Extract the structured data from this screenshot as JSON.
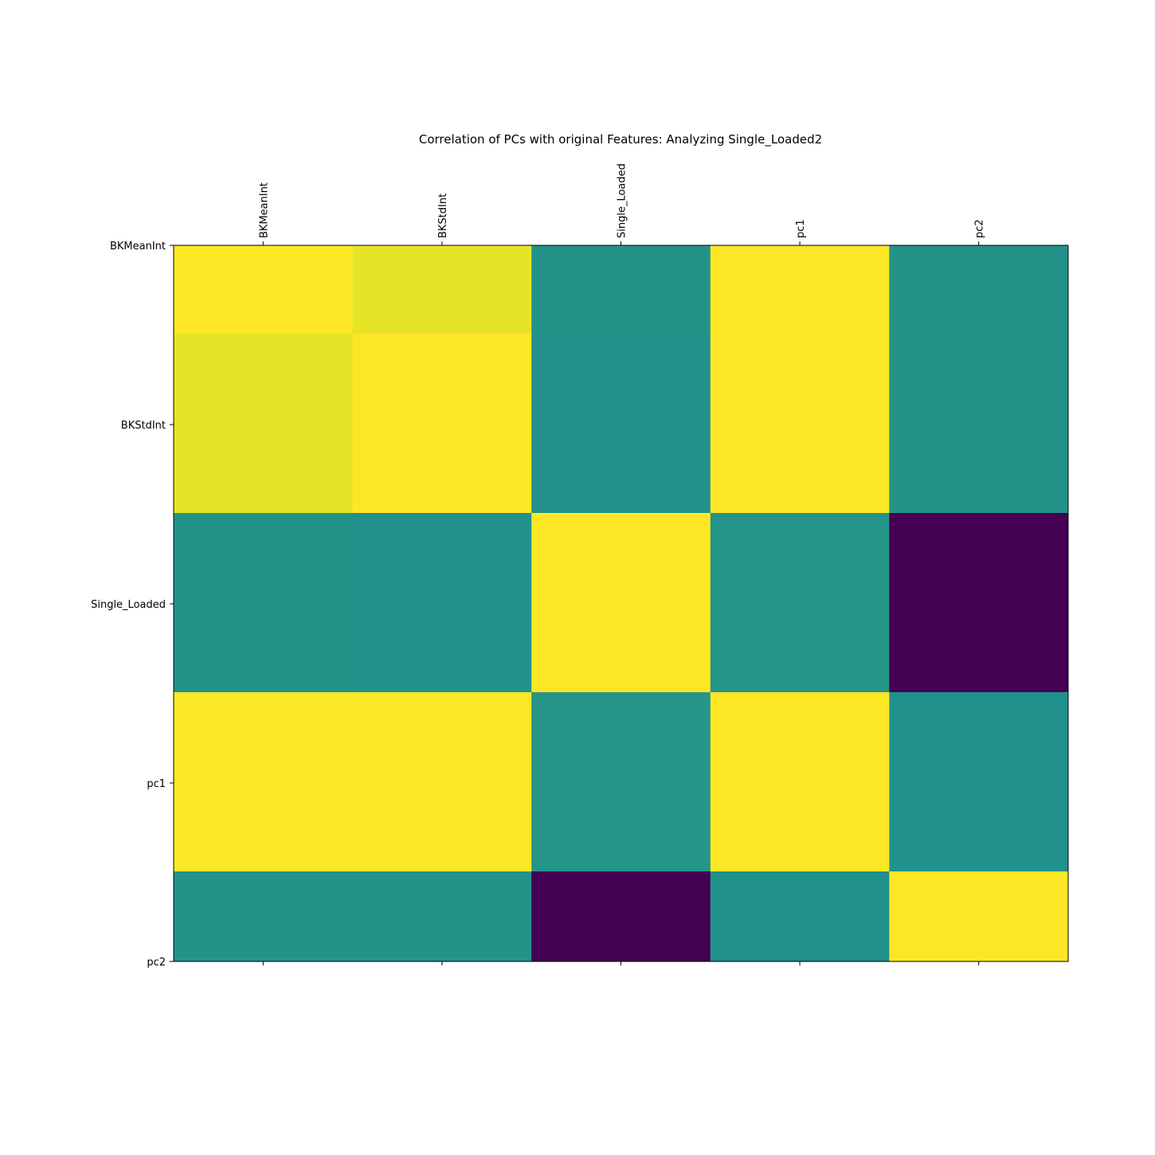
{
  "chart_data": {
    "type": "heatmap",
    "title": "Correlation of PCs with original Features: Analyzing Single_Loaded2",
    "x_labels": [
      "BKMeanInt",
      "BKStdInt",
      "Single_Loaded",
      "pc1",
      "pc2"
    ],
    "y_labels": [
      "BKMeanInt",
      "BKStdInt",
      "Single_Loaded",
      "pc1",
      "pc2"
    ],
    "values": [
      [
        1.0,
        0.93,
        0.02,
        0.99,
        0.02
      ],
      [
        0.93,
        1.0,
        0.01,
        0.99,
        0.02
      ],
      [
        0.02,
        0.01,
        1.0,
        0.03,
        -1.0
      ],
      [
        0.99,
        0.99,
        0.03,
        1.0,
        0.0
      ],
      [
        0.02,
        0.02,
        -1.0,
        0.0,
        1.0
      ]
    ],
    "colormap": "viridis",
    "vmin": -1.0,
    "vmax": 1.0,
    "x_tick_position": "top-and-bottom",
    "x_tick_rotation": "vertical",
    "grid": false,
    "colorbar": false
  }
}
